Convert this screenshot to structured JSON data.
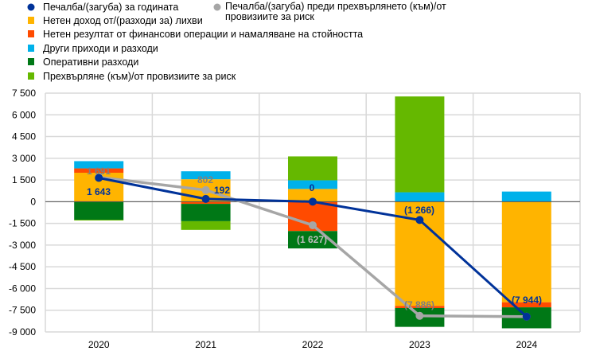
{
  "chart_data": {
    "type": "bar",
    "stacked": true,
    "categories": [
      "2020",
      "2021",
      "2022",
      "2023",
      "2024"
    ],
    "ylim": [
      -9000,
      7500
    ],
    "yticks": [
      7500,
      6000,
      4500,
      3000,
      1500,
      0,
      -1500,
      -3000,
      -4500,
      -6000,
      -7500,
      -9000
    ],
    "ytick_labels": [
      "7 500",
      "6 000",
      "4 500",
      "3 000",
      "1 500",
      "0",
      "-1 500",
      "-3 000",
      "-4 500",
      "-6 000",
      "-7 500",
      "-9 000"
    ],
    "grid": true,
    "legend_position": "top",
    "series": [
      {
        "name": "Нетен доход от/(разходи за) лихви",
        "color": "#FFB400",
        "values": [
          2000,
          1550,
          880,
          -7200,
          -6950
        ]
      },
      {
        "name": "Нетен резултат от финансови операции и намаляване на стойността",
        "color": "#FF4B00",
        "values": [
          300,
          -150,
          -2030,
          -150,
          -350
        ]
      },
      {
        "name": "Други приходи и разходи",
        "color": "#00B1EA",
        "values": [
          500,
          550,
          600,
          650,
          700
        ]
      },
      {
        "name": "Оперативни разходи",
        "color": "#007816",
        "values": [
          -1250,
          -1200,
          -1200,
          -1300,
          -1450
        ]
      },
      {
        "name": "Прехвърляне (към)/от провизиите за риск",
        "color": "#65B800",
        "values": [
          -50,
          -600,
          1650,
          6620,
          0
        ]
      }
    ],
    "lines": [
      {
        "name": "Печалба/(загуба)  за годината",
        "color": "#003299",
        "values": [
          1643,
          192,
          0,
          -1266,
          -7944
        ],
        "labels": [
          "1 643",
          "192",
          "0",
          "(1 266)",
          "(7 944)"
        ]
      },
      {
        "name": "Печалба/(загуба) преди прехвърлянето (към)/от провизиите за риск",
        "color": "#A6A6A6",
        "label_color": "#7F7F7F",
        "values": [
          1691,
          802,
          -1627,
          -7886,
          -7944
        ],
        "labels": [
          "1 691",
          "802",
          "(1 627)",
          "(7 886)",
          ""
        ]
      }
    ]
  },
  "legend": {
    "line1": "Печалба/(загуба)  за годината",
    "line2_a": "Печалба/(загуба) преди прехвърлянето (към)/от",
    "line2_b": "провизиите за риск",
    "s0": "Нетен доход от/(разходи за) лихви",
    "s1": "Нетен резултат от финансови операции и намаляване на стойността",
    "s2": "Други приходи и разходи",
    "s3": "Оперативни разходи",
    "s4": "Прехвърляне (към)/от провизиите за риск"
  }
}
